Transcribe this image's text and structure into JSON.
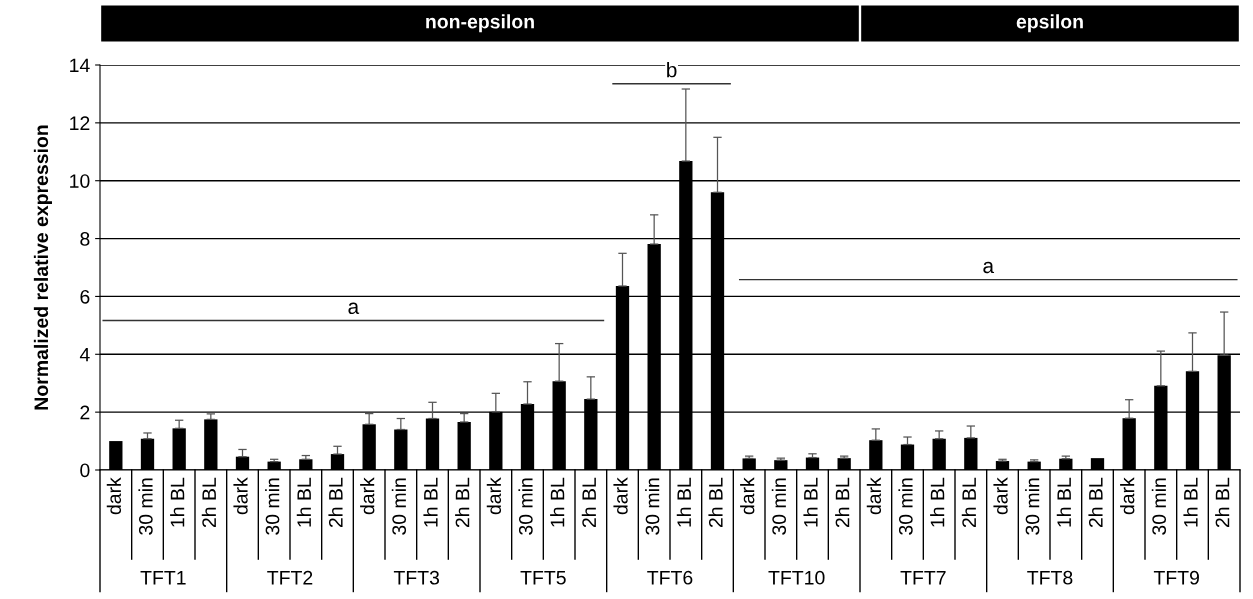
{
  "chart_data": {
    "type": "bar",
    "ylabel": "Normalized relative expression",
    "categories": [
      "dark",
      "30 min",
      "1h BL",
      "2h BL",
      "dark",
      "30 min",
      "1h BL",
      "2h BL",
      "dark",
      "30 min",
      "1h BL",
      "2h BL",
      "dark",
      "30 min",
      "1h BL",
      "2h BL",
      "dark",
      "30 min",
      "1h BL",
      "2h BL",
      "dark",
      "30 min",
      "1h BL",
      "2h BL",
      "dark",
      "30 min",
      "1h BL",
      "2h BL",
      "dark",
      "30 min",
      "1h BL",
      "2h BL",
      "dark",
      "30 min",
      "1h BL",
      "2h BL"
    ],
    "values": [
      1.0,
      1.08,
      1.44,
      1.75,
      0.46,
      0.29,
      0.37,
      0.55,
      1.58,
      1.4,
      1.78,
      1.66,
      2.01,
      2.28,
      3.07,
      2.45,
      6.36,
      7.81,
      10.68,
      9.6,
      0.4,
      0.34,
      0.43,
      0.41,
      1.03,
      0.88,
      1.08,
      1.11,
      0.31,
      0.29,
      0.39,
      0.41,
      1.79,
      2.91,
      3.41,
      3.97
    ],
    "errors": [
      null,
      0.2,
      0.28,
      0.19,
      0.25,
      0.08,
      0.13,
      0.27,
      0.37,
      0.38,
      0.56,
      0.29,
      0.64,
      0.77,
      1.3,
      0.77,
      1.13,
      1.01,
      2.49,
      1.9,
      0.08,
      0.07,
      0.13,
      0.07,
      0.39,
      0.26,
      0.27,
      0.41,
      0.06,
      0.06,
      0.09,
      null,
      0.64,
      1.2,
      1.33,
      1.49
    ],
    "color": "#000000",
    "ylim": [
      0,
      14
    ],
    "yticks": [
      0,
      2,
      4,
      6,
      8,
      10,
      12,
      14
    ],
    "grid": "y",
    "annotations": [
      "TFT1",
      "TFT2",
      "TFT3",
      "TFT5",
      "TFT6",
      "TFT10",
      "TFT7",
      "TFT8",
      "TFT9",
      "non-epsilon",
      "epsilon",
      "a",
      "b",
      "a"
    ]
  }
}
